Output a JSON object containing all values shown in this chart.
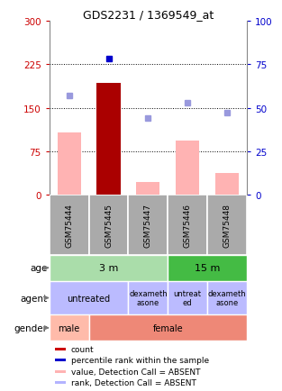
{
  "title": "GDS2231 / 1369549_at",
  "samples": [
    "GSM75444",
    "GSM75445",
    "GSM75447",
    "GSM75446",
    "GSM75448"
  ],
  "bar_values": [
    107,
    193,
    22,
    93,
    37
  ],
  "bar_colors": [
    "#ffb3b3",
    "#aa0000",
    "#ffb3b3",
    "#ffb3b3",
    "#ffb3b3"
  ],
  "rank_dots_pct": [
    57,
    78,
    44,
    53,
    47
  ],
  "rank_dot_is_dark": [
    false,
    true,
    false,
    false,
    false
  ],
  "ylim_left": [
    0,
    300
  ],
  "ylim_right": [
    0,
    100
  ],
  "yticks_left": [
    0,
    75,
    150,
    225,
    300
  ],
  "yticks_right": [
    0,
    25,
    50,
    75,
    100
  ],
  "hlines": [
    75,
    150,
    225
  ],
  "age_light_color": "#aaddaa",
  "age_dark_color": "#44bb44",
  "agent_color": "#bbbbff",
  "gender_male_color": "#ffbbaa",
  "gender_female_color": "#ee8877",
  "sample_box_color": "#aaaaaa",
  "legend_items": [
    {
      "color": "#cc0000",
      "label": "count"
    },
    {
      "color": "#0000cc",
      "label": "percentile rank within the sample"
    },
    {
      "color": "#ffb3b3",
      "label": "value, Detection Call = ABSENT"
    },
    {
      "color": "#b3b3ff",
      "label": "rank, Detection Call = ABSENT"
    }
  ],
  "tick_left_color": "#cc0000",
  "tick_right_color": "#0000cc"
}
